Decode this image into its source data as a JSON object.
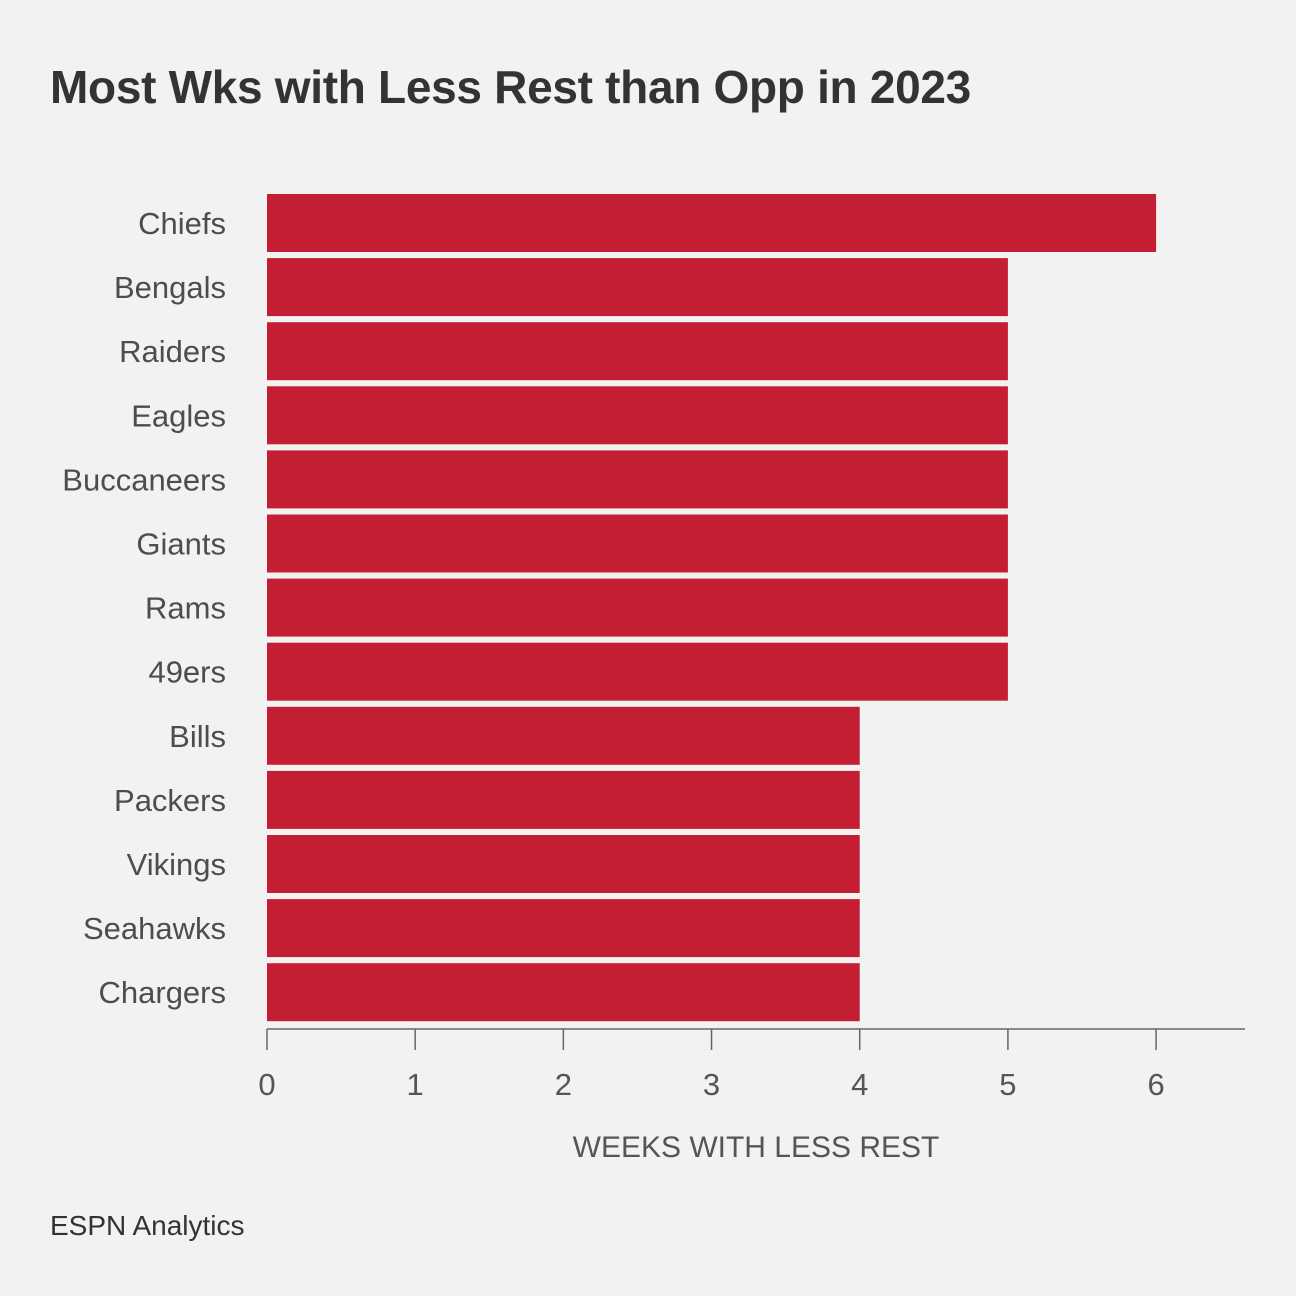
{
  "source": "ESPN Analytics",
  "colors": {
    "background": "#f2f2f2",
    "bar": "#c41e32",
    "text": "#333333",
    "axis": "#555555"
  },
  "chart_data": {
    "type": "bar",
    "orientation": "horizontal",
    "title": "Most Wks with Less Rest than Opp in 2023",
    "xlabel": "WEEKS WITH LESS REST",
    "ylabel": "",
    "categories": [
      "Chiefs",
      "Bengals",
      "Raiders",
      "Eagles",
      "Buccaneers",
      "Giants",
      "Rams",
      "49ers",
      "Bills",
      "Packers",
      "Vikings",
      "Seahawks",
      "Chargers"
    ],
    "values": [
      6,
      5,
      5,
      5,
      5,
      5,
      5,
      5,
      4,
      4,
      4,
      4,
      4
    ],
    "xlim": [
      0,
      6.6
    ],
    "xticks": [
      0,
      1,
      2,
      3,
      4,
      5,
      6
    ],
    "grid": false,
    "legend": "none"
  }
}
